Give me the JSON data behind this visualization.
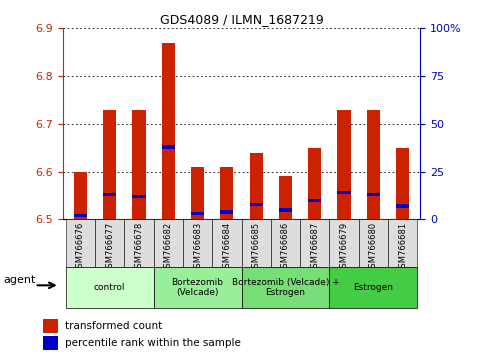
{
  "title": "GDS4089 / ILMN_1687219",
  "samples": [
    "GSM766676",
    "GSM766677",
    "GSM766678",
    "GSM766682",
    "GSM766683",
    "GSM766684",
    "GSM766685",
    "GSM766686",
    "GSM766687",
    "GSM766679",
    "GSM766680",
    "GSM766681"
  ],
  "transformed_counts": [
    6.6,
    6.73,
    6.73,
    6.87,
    6.61,
    6.61,
    6.64,
    6.59,
    6.65,
    6.73,
    6.73,
    6.65
  ],
  "percentile_ranks": [
    2,
    13,
    12,
    38,
    3,
    4,
    8,
    5,
    10,
    14,
    13,
    7
  ],
  "ylim_left": [
    6.5,
    6.9
  ],
  "yticks_left": [
    6.5,
    6.6,
    6.7,
    6.8,
    6.9
  ],
  "yticks_right": [
    0,
    25,
    50,
    75,
    100
  ],
  "ytick_labels_right": [
    "0",
    "25",
    "50",
    "75",
    "100%"
  ],
  "groups": [
    {
      "label": "control",
      "start": 0,
      "end": 3,
      "color": "#ccffcc"
    },
    {
      "label": "Bortezomib\n(Velcade)",
      "start": 3,
      "end": 6,
      "color": "#99ee99"
    },
    {
      "label": "Bortezomib (Velcade) +\nEstrogen",
      "start": 6,
      "end": 9,
      "color": "#77dd77"
    },
    {
      "label": "Estrogen",
      "start": 9,
      "end": 12,
      "color": "#44cc44"
    }
  ],
  "bar_color": "#cc2200",
  "percentile_color": "#0000cc",
  "bar_width": 0.45,
  "background_color": "#ffffff",
  "tick_color_left": "#cc2200",
  "tick_color_right": "#0000cc",
  "legend_items": [
    "transformed count",
    "percentile rank within the sample"
  ],
  "agent_label": "agent"
}
